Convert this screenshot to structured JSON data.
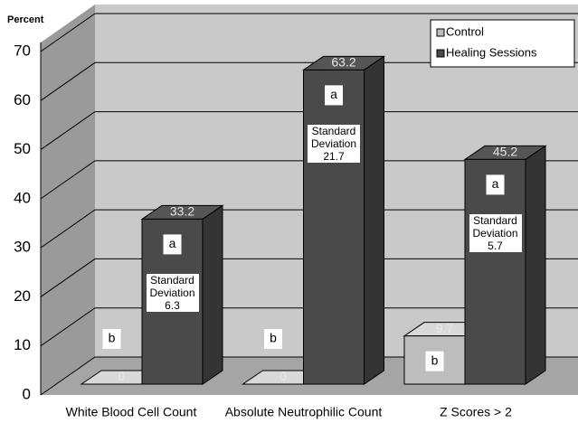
{
  "chart_data": {
    "type": "bar3d",
    "y_axis_label": "Percent",
    "categories": [
      "White Blood Cell Count",
      "Absolute Neutrophilic Count",
      "Z Scores > 2"
    ],
    "series": [
      {
        "name": "Control",
        "color": "#bdbdbd",
        "values": [
          0,
          0,
          9.7
        ],
        "letters": [
          "b",
          "b",
          "b"
        ]
      },
      {
        "name": "Healing Sessions",
        "color": "#4a4a4a",
        "values": [
          33.2,
          63.2,
          45.2
        ],
        "letters": [
          "a",
          "a",
          "a"
        ],
        "sd_label": "Standard Deviation",
        "sd": [
          6.3,
          21.7,
          5.7
        ]
      }
    ],
    "ylim": [
      0,
      70
    ],
    "yticks": [
      0,
      10,
      20,
      30,
      40,
      50,
      60,
      70
    ],
    "grid": true,
    "legend": "top-right"
  }
}
